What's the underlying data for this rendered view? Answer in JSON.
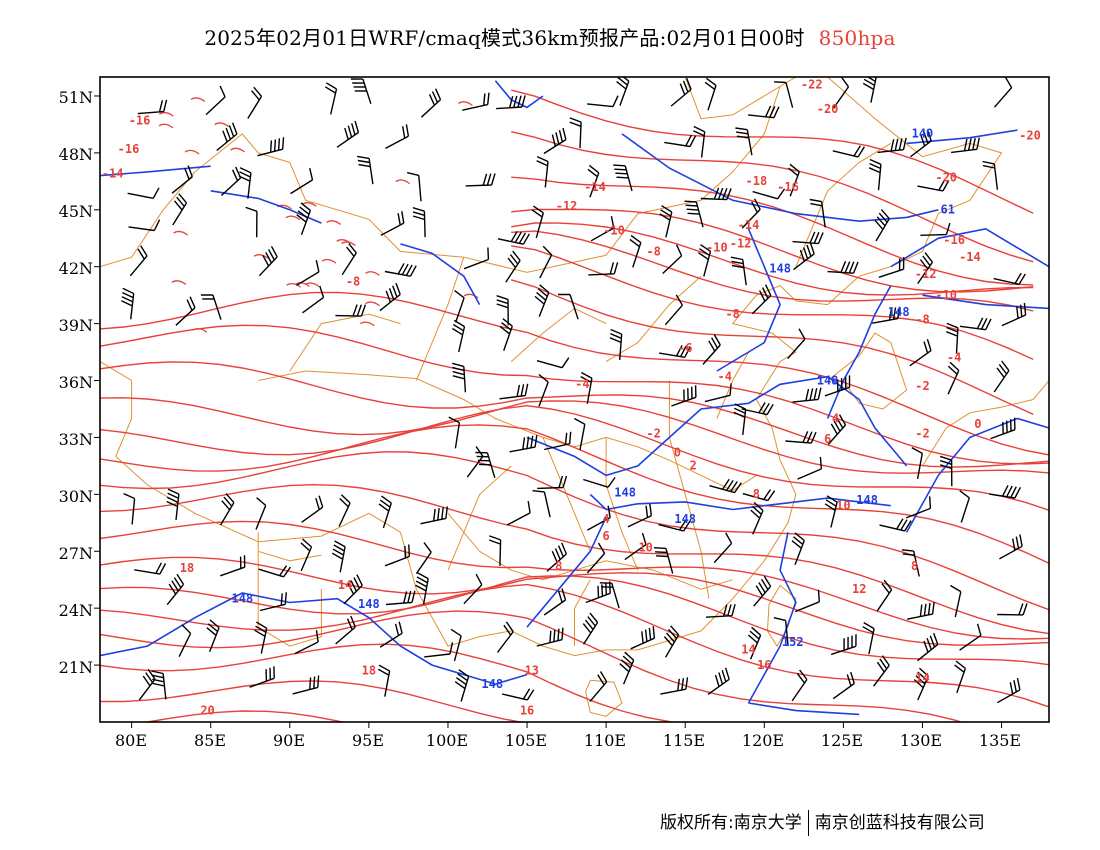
{
  "title": {
    "text": "2025年02月01日WRF/cmaq模式36km预报产品:02月01日00时",
    "level": "850hpa",
    "level_color": "#e8413a"
  },
  "axes": {
    "lat_labels": [
      "51N",
      "48N",
      "45N",
      "42N",
      "39N",
      "36N",
      "33N",
      "30N",
      "27N",
      "24N",
      "21N"
    ],
    "lon_labels": [
      "80E",
      "85E",
      "90E",
      "95E",
      "100E",
      "105E",
      "110E",
      "115E",
      "120E",
      "125E",
      "130E",
      "135E"
    ],
    "lat_range": [
      18,
      52
    ],
    "lon_range": [
      78,
      138
    ]
  },
  "colors": {
    "temperature_contour": "#e8413a",
    "height_contour": "#1f3fe0",
    "boundary": "#e0912f",
    "wind_barb": "#000000"
  },
  "temperature_labels": [
    {
      "text": "-16",
      "lon": 79.8,
      "lat": 48.0
    },
    {
      "text": "-16",
      "lon": 80.5,
      "lat": 49.5
    },
    {
      "text": "-14",
      "lon": 78.8,
      "lat": 46.7
    },
    {
      "text": "-8",
      "lon": 94.0,
      "lat": 41.0
    },
    {
      "text": "-22",
      "lon": 123.0,
      "lat": 51.4
    },
    {
      "text": "-20",
      "lon": 124.0,
      "lat": 50.1
    },
    {
      "text": "-20",
      "lon": 136.8,
      "lat": 48.7
    },
    {
      "text": "-20",
      "lon": 131.5,
      "lat": 46.5
    },
    {
      "text": "-18",
      "lon": 119.5,
      "lat": 46.3
    },
    {
      "text": "-16",
      "lon": 121.5,
      "lat": 46.0
    },
    {
      "text": "-14",
      "lon": 109.3,
      "lat": 46.0
    },
    {
      "text": "-12",
      "lon": 107.5,
      "lat": 45.0
    },
    {
      "text": "-10",
      "lon": 110.5,
      "lat": 43.7
    },
    {
      "text": "-14",
      "lon": 119.0,
      "lat": 44.0
    },
    {
      "text": "-10",
      "lon": 117.0,
      "lat": 42.8
    },
    {
      "text": "-12",
      "lon": 118.5,
      "lat": 43.0
    },
    {
      "text": "-16",
      "lon": 132.0,
      "lat": 43.2
    },
    {
      "text": "-14",
      "lon": 133.0,
      "lat": 42.3
    },
    {
      "text": "-12",
      "lon": 130.2,
      "lat": 41.4
    },
    {
      "text": "-10",
      "lon": 131.5,
      "lat": 40.3
    },
    {
      "text": "-8",
      "lon": 130.0,
      "lat": 39.0
    },
    {
      "text": "-8",
      "lon": 113.0,
      "lat": 42.6
    },
    {
      "text": "-8",
      "lon": 118.0,
      "lat": 39.3
    },
    {
      "text": "-6",
      "lon": 115.0,
      "lat": 37.5
    },
    {
      "text": "-4",
      "lon": 108.5,
      "lat": 35.6
    },
    {
      "text": "-4",
      "lon": 117.5,
      "lat": 36.0
    },
    {
      "text": "-4",
      "lon": 132.0,
      "lat": 37.0
    },
    {
      "text": "-2",
      "lon": 130.0,
      "lat": 35.5
    },
    {
      "text": "-2",
      "lon": 113.0,
      "lat": 33.0
    },
    {
      "text": "-2",
      "lon": 130.0,
      "lat": 33.0
    },
    {
      "text": "0",
      "lon": 114.5,
      "lat": 32.0
    },
    {
      "text": "0",
      "lon": 133.5,
      "lat": 33.5
    },
    {
      "text": "2",
      "lon": 115.5,
      "lat": 31.3
    },
    {
      "text": "4",
      "lon": 124.5,
      "lat": 33.8
    },
    {
      "text": "6",
      "lon": 124.0,
      "lat": 32.7
    },
    {
      "text": "8",
      "lon": 119.5,
      "lat": 29.8
    },
    {
      "text": "10",
      "lon": 125.0,
      "lat": 29.2
    },
    {
      "text": "4",
      "lon": 110.0,
      "lat": 28.5
    },
    {
      "text": "6",
      "lon": 110.0,
      "lat": 27.6
    },
    {
      "text": "8",
      "lon": 107.0,
      "lat": 26.0
    },
    {
      "text": "10",
      "lon": 112.5,
      "lat": 27.0
    },
    {
      "text": "12",
      "lon": 126.0,
      "lat": 24.8
    },
    {
      "text": "8",
      "lon": 129.5,
      "lat": 26.0
    },
    {
      "text": "14",
      "lon": 93.5,
      "lat": 25.0
    },
    {
      "text": "18",
      "lon": 83.5,
      "lat": 25.9
    },
    {
      "text": "18",
      "lon": 95.0,
      "lat": 20.5
    },
    {
      "text": "14",
      "lon": 119.0,
      "lat": 21.6
    },
    {
      "text": "16",
      "lon": 120.0,
      "lat": 20.8
    },
    {
      "text": "13",
      "lon": 105.3,
      "lat": 20.5
    },
    {
      "text": "14",
      "lon": 130.0,
      "lat": 20.1
    },
    {
      "text": "16",
      "lon": 105.0,
      "lat": 18.4
    },
    {
      "text": "20",
      "lon": 84.8,
      "lat": 18.4
    }
  ],
  "height_labels": [
    {
      "text": "140",
      "lon": 130.0,
      "lat": 48.8
    },
    {
      "text": "61",
      "lon": 131.6,
      "lat": 44.8
    },
    {
      "text": "148",
      "lon": 121.0,
      "lat": 41.7
    },
    {
      "text": "148",
      "lon": 128.5,
      "lat": 39.4
    },
    {
      "text": "148",
      "lon": 124.0,
      "lat": 35.8
    },
    {
      "text": "148",
      "lon": 111.2,
      "lat": 29.9
    },
    {
      "text": "148",
      "lon": 115.0,
      "lat": 28.5
    },
    {
      "text": "148",
      "lon": 126.5,
      "lat": 29.5
    },
    {
      "text": "148",
      "lon": 87.0,
      "lat": 24.3
    },
    {
      "text": "148",
      "lon": 95.0,
      "lat": 24.0
    },
    {
      "text": "152",
      "lon": 121.8,
      "lat": 22.0
    },
    {
      "text": "148",
      "lon": 102.8,
      "lat": 19.8
    }
  ],
  "footer": {
    "left": "版权所有:南京大学",
    "right": "南京创蓝科技有限公司"
  }
}
